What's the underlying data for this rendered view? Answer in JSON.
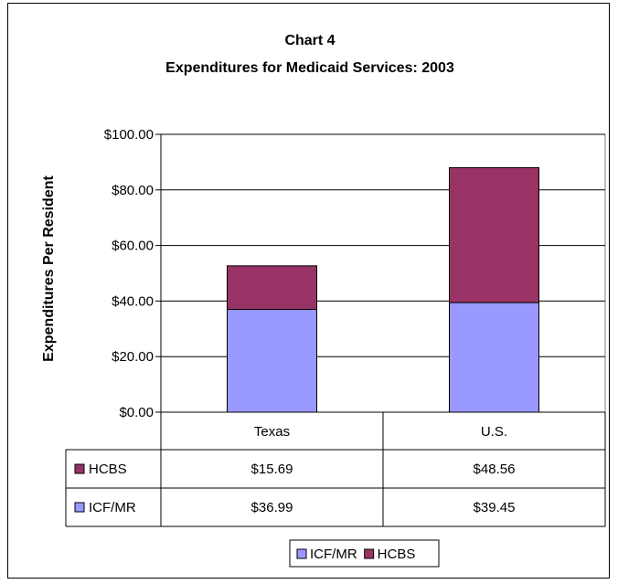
{
  "chart_data": {
    "type": "bar",
    "stacked": true,
    "title": "Chart 4",
    "subtitle": "Expenditures for Medicaid Services: 2003",
    "xlabel": "",
    "ylabel": "Expenditures Per Resident",
    "ylim": [
      0,
      100
    ],
    "yticks": [
      "$0.00",
      "$20.00",
      "$40.00",
      "$60.00",
      "$80.00",
      "$100.00"
    ],
    "ytick_values": [
      0,
      20,
      40,
      60,
      80,
      100
    ],
    "categories": [
      "Texas",
      "U.S."
    ],
    "series": [
      {
        "name": "ICF/MR",
        "values": [
          36.99,
          39.45
        ],
        "labels": [
          "$36.99",
          "$39.45"
        ],
        "color": "#9999FF"
      },
      {
        "name": "HCBS",
        "values": [
          15.69,
          48.56
        ],
        "labels": [
          "$15.69",
          "$48.56"
        ],
        "color": "#993366"
      }
    ],
    "data_table_row_order": [
      "HCBS",
      "ICF/MR"
    ],
    "legend": {
      "position": "bottom",
      "entries": [
        "ICF/MR",
        "HCBS"
      ]
    },
    "grid": true
  }
}
